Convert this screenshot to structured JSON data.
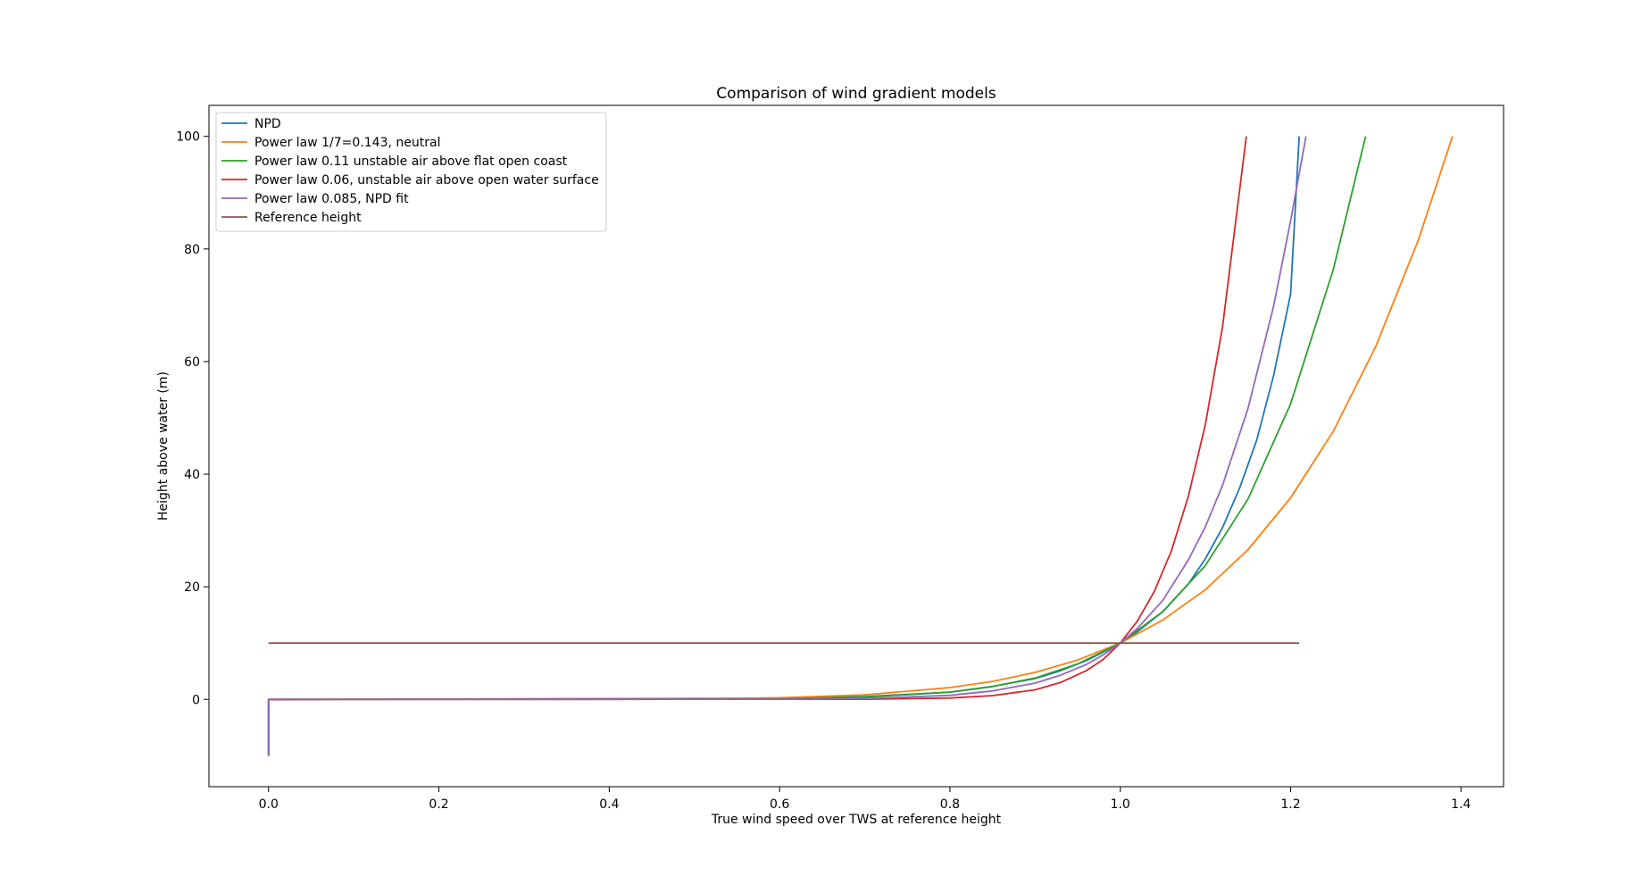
{
  "chart_data": {
    "type": "line",
    "title": "Comparison of wind gradient models",
    "xlabel": "True wind speed over TWS at reference height",
    "ylabel": "Height above water (m)",
    "xlim": [
      -0.07,
      1.45
    ],
    "ylim": [
      -15.5,
      105.5
    ],
    "xticks": [
      0.0,
      0.2,
      0.4,
      0.6,
      0.8,
      1.0,
      1.2,
      1.4
    ],
    "xtick_labels": [
      "0.0",
      "0.2",
      "0.4",
      "0.6",
      "0.8",
      "1.0",
      "1.2",
      "1.4"
    ],
    "yticks": [
      0,
      20,
      40,
      60,
      80,
      100
    ],
    "ytick_labels": [
      "0",
      "20",
      "40",
      "60",
      "80",
      "100"
    ],
    "grid": false,
    "legend_position": "top-left",
    "reference_height": 10,
    "series": [
      {
        "name": "NPD",
        "color": "#1f77b4",
        "x": [
          0.0,
          0.0,
          0.6,
          0.7,
          0.8,
          0.85,
          0.9,
          0.93,
          0.96,
          0.98,
          1.0,
          1.02,
          1.05,
          1.08,
          1.1,
          1.12,
          1.14,
          1.16,
          1.18,
          1.2,
          1.21
        ],
        "y": [
          -10,
          0,
          0.2,
          0.5,
          1.3,
          2.3,
          3.7,
          5.1,
          6.9,
          8.4,
          10,
          12.0,
          15.6,
          20.5,
          25.0,
          30.5,
          37.5,
          46.0,
          57.5,
          72.0,
          100
        ]
      },
      {
        "name": "Power law 1/7=0.143, neutral",
        "color": "#ff7f0e",
        "x": [
          0.0,
          0.0,
          0.5,
          0.6,
          0.7,
          0.8,
          0.85,
          0.9,
          0.95,
          1.0,
          1.05,
          1.1,
          1.15,
          1.2,
          1.25,
          1.3,
          1.35,
          1.39
        ],
        "y": [
          -10,
          0,
          0.1,
          0.3,
          0.8,
          2.1,
          3.2,
          4.8,
          7.0,
          10,
          14.1,
          19.5,
          26.6,
          35.8,
          47.6,
          62.7,
          81.6,
          100
        ]
      },
      {
        "name": "Power law 0.11 unstable air above flat open coast",
        "color": "#2ca02c",
        "x": [
          0.0,
          0.0,
          0.6,
          0.7,
          0.8,
          0.85,
          0.9,
          0.95,
          1.0,
          1.05,
          1.1,
          1.15,
          1.2,
          1.25,
          1.288
        ],
        "y": [
          -10,
          0,
          0.1,
          0.4,
          1.3,
          2.3,
          3.8,
          6.3,
          10,
          15.6,
          23.8,
          35.6,
          52.5,
          76.3,
          100
        ]
      },
      {
        "name": "Power law 0.06, unstable air above open water surface",
        "color": "#d62728",
        "x": [
          0.0,
          0.0,
          0.7,
          0.8,
          0.85,
          0.9,
          0.93,
          0.96,
          0.98,
          1.0,
          1.02,
          1.04,
          1.06,
          1.08,
          1.1,
          1.12,
          1.148
        ],
        "y": [
          -10,
          0,
          0.03,
          0.24,
          0.67,
          1.7,
          3.0,
          5.1,
          7.1,
          10,
          13.9,
          19.2,
          26.4,
          36.1,
          48.9,
          66.1,
          100
        ]
      },
      {
        "name": "Power law 0.085, NPD fit",
        "color": "#9467bd",
        "x": [
          0.0,
          0.0,
          0.6,
          0.7,
          0.8,
          0.85,
          0.9,
          0.93,
          0.96,
          0.98,
          1.0,
          1.02,
          1.05,
          1.08,
          1.1,
          1.12,
          1.15,
          1.18,
          1.2,
          1.218
        ],
        "y": [
          -10,
          0,
          0.02,
          0.15,
          0.72,
          1.5,
          2.9,
          4.3,
          6.2,
          7.9,
          10,
          12.6,
          17.6,
          24.8,
          30.7,
          38.0,
          51.7,
          69.8,
          85.0,
          100
        ]
      },
      {
        "name": "Reference height",
        "color": "#8c564b",
        "x": [
          0.0,
          1.21
        ],
        "y": [
          10,
          10
        ]
      }
    ]
  }
}
